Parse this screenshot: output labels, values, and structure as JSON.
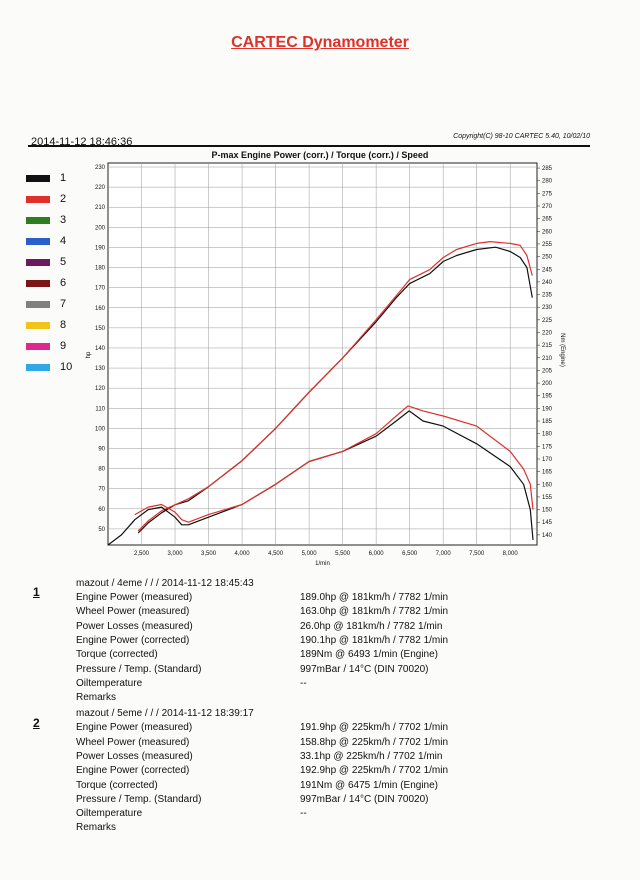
{
  "header": {
    "title": "CARTEC Dynamometer",
    "datetime": "2014-11-12 18:46:36",
    "copyright": "Copyright(C) 98-10 CARTEC 5.40, 10/02/10"
  },
  "legend": [
    {
      "label": "1",
      "color": "#111111"
    },
    {
      "label": "2",
      "color": "#e0302a"
    },
    {
      "label": "3",
      "color": "#2e7d1f"
    },
    {
      "label": "4",
      "color": "#2a5fc9"
    },
    {
      "label": "5",
      "color": "#6b1a5c"
    },
    {
      "label": "6",
      "color": "#7a1416"
    },
    {
      "label": "7",
      "color": "#808080"
    },
    {
      "label": "8",
      "color": "#f2c31a"
    },
    {
      "label": "9",
      "color": "#e0288f"
    },
    {
      "label": "10",
      "color": "#2ea8e6"
    }
  ],
  "chart_data": {
    "type": "line",
    "title": "P-max Engine Power (corr.) / Torque (corr.) / Speed",
    "xlabel": "1/min",
    "ylabel": "hp",
    "y2label": "Nm (Engine)",
    "xlim": [
      2000,
      8400
    ],
    "ylim": [
      42,
      232
    ],
    "y2lim": [
      136,
      287
    ],
    "x_ticks": [
      "2,500",
      "3,000",
      "3,500",
      "4,000",
      "4,500",
      "5,000",
      "5,500",
      "6,000",
      "6,500",
      "7,000",
      "7,500",
      "8,000"
    ],
    "y_ticks": [
      "50",
      "60",
      "70",
      "80",
      "90",
      "100",
      "110",
      "120",
      "130",
      "140",
      "150",
      "160",
      "170",
      "180",
      "190",
      "200",
      "210",
      "220",
      "230"
    ],
    "y2_ticks": [
      "140",
      "145",
      "150",
      "155",
      "160",
      "165",
      "170",
      "175",
      "180",
      "185",
      "190",
      "195",
      "200",
      "205",
      "210",
      "215",
      "220",
      "225",
      "230",
      "235",
      "240",
      "245",
      "250",
      "255",
      "260",
      "265",
      "270",
      "275",
      "280",
      "285"
    ],
    "series": [
      {
        "name": "1 Power",
        "color": "#111111",
        "axis": "y",
        "x": [
          2450,
          2600,
          2800,
          3000,
          3200,
          3500,
          4000,
          4500,
          5000,
          5500,
          6000,
          6300,
          6500,
          6800,
          7000,
          7200,
          7500,
          7782,
          8000,
          8150,
          8250,
          8330
        ],
        "y": [
          48,
          53,
          58,
          62,
          64,
          71,
          84,
          100,
          118,
          135,
          153,
          165,
          172,
          177,
          183,
          186,
          189,
          190.1,
          188,
          185,
          180,
          165
        ]
      },
      {
        "name": "2 Power",
        "color": "#e0302a",
        "axis": "y",
        "x": [
          2450,
          2600,
          2800,
          3000,
          3200,
          3500,
          4000,
          4500,
          5000,
          5500,
          6000,
          6300,
          6500,
          6800,
          7000,
          7200,
          7500,
          7702,
          8000,
          8150,
          8250,
          8330
        ],
        "y": [
          49,
          54,
          59,
          62,
          65,
          71,
          84,
          100,
          118,
          135,
          154,
          166,
          174,
          179,
          185,
          189,
          192,
          192.9,
          192,
          191,
          186,
          176
        ]
      },
      {
        "name": "1 Torque",
        "color": "#111111",
        "axis": "y2",
        "x": [
          2000,
          2200,
          2400,
          2600,
          2800,
          3000,
          3100,
          3200,
          3500,
          4000,
          4500,
          5000,
          5500,
          6000,
          6300,
          6493,
          6700,
          7000,
          7500,
          8000,
          8200,
          8300,
          8340
        ],
        "y": [
          136,
          140,
          146,
          150,
          151,
          147,
          144,
          144,
          147,
          152,
          160,
          169,
          173,
          179,
          185,
          189,
          185,
          183,
          176,
          167,
          160,
          150,
          138
        ]
      },
      {
        "name": "2 Torque",
        "color": "#e0302a",
        "axis": "y2",
        "x": [
          2400,
          2600,
          2800,
          3000,
          3100,
          3200,
          3500,
          4000,
          4500,
          5000,
          5500,
          6000,
          6300,
          6475,
          6700,
          7000,
          7500,
          8000,
          8200,
          8300,
          8340
        ],
        "y": [
          148,
          151,
          152,
          149,
          146,
          145,
          148,
          152,
          160,
          169,
          173,
          180,
          187,
          191,
          189,
          187,
          183,
          173,
          166,
          160,
          150
        ]
      }
    ]
  },
  "runs": [
    {
      "number": "1",
      "header": "mazout / 4eme /  /  / 2014-11-12 18:45:43",
      "rows": [
        {
          "label": "Engine Power (measured)",
          "value": "189.0hp @ 181km/h / 7782 1/min"
        },
        {
          "label": "Wheel Power (measured)",
          "value": "163.0hp @ 181km/h / 7782 1/min"
        },
        {
          "label": "Power Losses (measured)",
          "value": "26.0hp @ 181km/h / 7782 1/min"
        },
        {
          "label": "Engine Power (corrected)",
          "value": "190.1hp @ 181km/h / 7782 1/min"
        },
        {
          "label": "Torque (corrected)",
          "value": "189Nm @ 6493 1/min (Engine)"
        },
        {
          "label": "Pressure / Temp. (Standard)",
          "value": "997mBar / 14°C   (DIN 70020)"
        },
        {
          "label": "Oiltemperature",
          "value": "--"
        },
        {
          "label": "Remarks",
          "value": ""
        }
      ]
    },
    {
      "number": "2",
      "header": "mazout / 5eme /  /  / 2014-11-12 18:39:17",
      "rows": [
        {
          "label": "Engine Power (measured)",
          "value": "191.9hp @ 225km/h / 7702 1/min"
        },
        {
          "label": "Wheel Power (measured)",
          "value": "158.8hp @ 225km/h / 7702 1/min"
        },
        {
          "label": "Power Losses (measured)",
          "value": "33.1hp @ 225km/h / 7702 1/min"
        },
        {
          "label": "Engine Power (corrected)",
          "value": "192.9hp @ 225km/h / 7702 1/min"
        },
        {
          "label": "Torque (corrected)",
          "value": "191Nm @ 6475 1/min (Engine)"
        },
        {
          "label": "Pressure / Temp. (Standard)",
          "value": "997mBar / 14°C   (DIN 70020)"
        },
        {
          "label": "Oiltemperature",
          "value": "--"
        },
        {
          "label": "Remarks",
          "value": ""
        }
      ]
    }
  ]
}
